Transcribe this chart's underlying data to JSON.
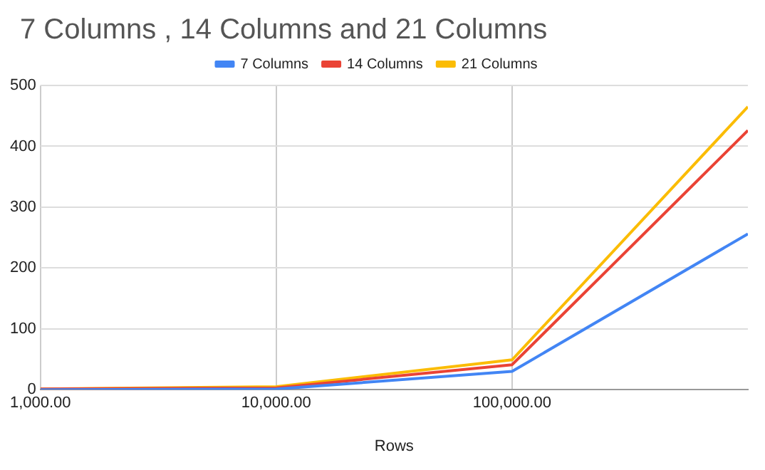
{
  "chart_data": {
    "type": "line",
    "title": "7 Columns , 14 Columns and 21 Columns",
    "xlabel": "Rows",
    "x": [
      1000,
      10000,
      100000,
      1000000
    ],
    "series": [
      {
        "name": "7 Columns",
        "color": "#4285f4",
        "values": [
          0,
          1,
          30,
          256
        ]
      },
      {
        "name": "14 Columns",
        "color": "#ea4335",
        "values": [
          1,
          3,
          41,
          426
        ]
      },
      {
        "name": "21 Columns",
        "color": "#fbbc04",
        "values": [
          1,
          5,
          49,
          465
        ]
      }
    ],
    "log": "x",
    "xlim": [
      1000,
      1000000
    ],
    "xticks": [
      {
        "value": 1000,
        "label": "1,000.00"
      },
      {
        "value": 10000,
        "label": "10,000.00"
      },
      {
        "value": 100000,
        "label": "100,000.00"
      }
    ],
    "ylim": [
      0,
      500
    ],
    "yticks": [
      0,
      100,
      200,
      300,
      400,
      500
    ],
    "grid": true,
    "legend": "top",
    "marker": "none",
    "line_style": "solid"
  }
}
